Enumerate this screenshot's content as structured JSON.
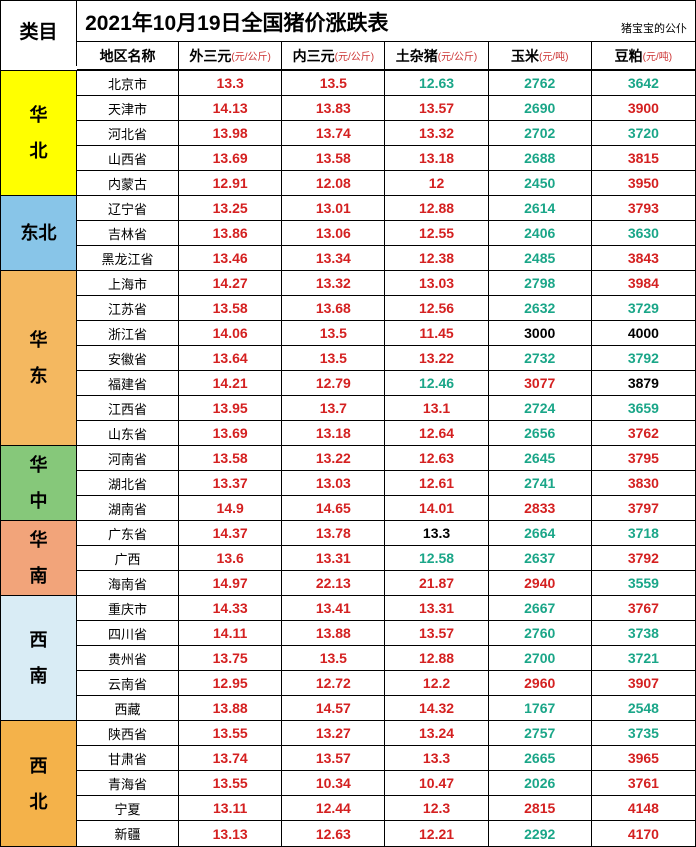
{
  "title": "2021年10月19日全国猪价涨跌表",
  "author": "猪宝宝的公仆",
  "cat_label": "类目",
  "columns": [
    {
      "label": "地区名称",
      "unit": ""
    },
    {
      "label": "外三元",
      "unit": "(元/公斤)"
    },
    {
      "label": "内三元",
      "unit": "(元/公斤)"
    },
    {
      "label": "土杂猪",
      "unit": "(元/公斤)"
    },
    {
      "label": "玉米",
      "unit": "(元/吨)"
    },
    {
      "label": "豆粕",
      "unit": "(元/吨)"
    }
  ],
  "colors": {
    "red": "#d42020",
    "teal": "#1aa688",
    "black": "#000000"
  },
  "region_colors": {
    "华北": "#ffff00",
    "东北": "#88c5e8",
    "华东": "#f4b860",
    "华中": "#86c87a",
    "华南": "#f2a47a",
    "西南": "#d9ecf5",
    "西北": "#f4b24a"
  },
  "regions": [
    {
      "name": "华北",
      "stack": [
        "华",
        "北"
      ],
      "rows": [
        {
          "area": "北京市",
          "v": [
            "13.3",
            "13.5",
            "12.63",
            "2762",
            "3642"
          ],
          "c": [
            "red",
            "red",
            "teal",
            "teal",
            "teal"
          ]
        },
        {
          "area": "天津市",
          "v": [
            "14.13",
            "13.83",
            "13.57",
            "2690",
            "3900"
          ],
          "c": [
            "red",
            "red",
            "red",
            "teal",
            "red"
          ]
        },
        {
          "area": "河北省",
          "v": [
            "13.98",
            "13.74",
            "13.32",
            "2702",
            "3720"
          ],
          "c": [
            "red",
            "red",
            "red",
            "teal",
            "teal"
          ]
        },
        {
          "area": "山西省",
          "v": [
            "13.69",
            "13.58",
            "13.18",
            "2688",
            "3815"
          ],
          "c": [
            "red",
            "red",
            "red",
            "teal",
            "red"
          ]
        },
        {
          "area": "内蒙古",
          "v": [
            "12.91",
            "12.08",
            "12",
            "2450",
            "3950"
          ],
          "c": [
            "red",
            "red",
            "red",
            "teal",
            "red"
          ]
        }
      ]
    },
    {
      "name": "东北",
      "stack": [
        "东北"
      ],
      "rows": [
        {
          "area": "辽宁省",
          "v": [
            "13.25",
            "13.01",
            "12.88",
            "2614",
            "3793"
          ],
          "c": [
            "red",
            "red",
            "red",
            "teal",
            "red"
          ]
        },
        {
          "area": "吉林省",
          "v": [
            "13.86",
            "13.06",
            "12.55",
            "2406",
            "3630"
          ],
          "c": [
            "red",
            "red",
            "red",
            "teal",
            "teal"
          ]
        },
        {
          "area": "黑龙江省",
          "v": [
            "13.46",
            "13.34",
            "12.38",
            "2485",
            "3843"
          ],
          "c": [
            "red",
            "red",
            "red",
            "teal",
            "red"
          ]
        }
      ]
    },
    {
      "name": "华东",
      "stack": [
        "华",
        "东"
      ],
      "rows": [
        {
          "area": "上海市",
          "v": [
            "14.27",
            "13.32",
            "13.03",
            "2798",
            "3984"
          ],
          "c": [
            "red",
            "red",
            "red",
            "teal",
            "red"
          ]
        },
        {
          "area": "江苏省",
          "v": [
            "13.58",
            "13.68",
            "12.56",
            "2632",
            "3729"
          ],
          "c": [
            "red",
            "red",
            "red",
            "teal",
            "teal"
          ]
        },
        {
          "area": "浙江省",
          "v": [
            "14.06",
            "13.5",
            "11.45",
            "3000",
            "4000"
          ],
          "c": [
            "red",
            "red",
            "red",
            "black",
            "black"
          ]
        },
        {
          "area": "安徽省",
          "v": [
            "13.64",
            "13.5",
            "13.22",
            "2732",
            "3792"
          ],
          "c": [
            "red",
            "red",
            "red",
            "teal",
            "teal"
          ]
        },
        {
          "area": "福建省",
          "v": [
            "14.21",
            "12.79",
            "12.46",
            "3077",
            "3879"
          ],
          "c": [
            "red",
            "red",
            "teal",
            "red",
            "black"
          ]
        },
        {
          "area": "江西省",
          "v": [
            "13.95",
            "13.7",
            "13.1",
            "2724",
            "3659"
          ],
          "c": [
            "red",
            "red",
            "red",
            "teal",
            "teal"
          ]
        },
        {
          "area": "山东省",
          "v": [
            "13.69",
            "13.18",
            "12.64",
            "2656",
            "3762"
          ],
          "c": [
            "red",
            "red",
            "red",
            "teal",
            "red"
          ]
        }
      ]
    },
    {
      "name": "华中",
      "stack": [
        "华",
        "中"
      ],
      "rows": [
        {
          "area": "河南省",
          "v": [
            "13.58",
            "13.22",
            "12.63",
            "2645",
            "3795"
          ],
          "c": [
            "red",
            "red",
            "red",
            "teal",
            "red"
          ]
        },
        {
          "area": "湖北省",
          "v": [
            "13.37",
            "13.03",
            "12.61",
            "2741",
            "3830"
          ],
          "c": [
            "red",
            "red",
            "red",
            "teal",
            "red"
          ]
        },
        {
          "area": "湖南省",
          "v": [
            "14.9",
            "14.65",
            "14.01",
            "2833",
            "3797"
          ],
          "c": [
            "red",
            "red",
            "red",
            "red",
            "red"
          ]
        }
      ]
    },
    {
      "name": "华南",
      "stack": [
        "华",
        "南"
      ],
      "rows": [
        {
          "area": "广东省",
          "v": [
            "14.37",
            "13.78",
            "13.3",
            "2664",
            "3718"
          ],
          "c": [
            "red",
            "red",
            "black",
            "teal",
            "teal"
          ]
        },
        {
          "area": "广西",
          "v": [
            "13.6",
            "13.31",
            "12.58",
            "2637",
            "3792"
          ],
          "c": [
            "red",
            "red",
            "teal",
            "teal",
            "red"
          ]
        },
        {
          "area": "海南省",
          "v": [
            "14.97",
            "22.13",
            "21.87",
            "2940",
            "3559"
          ],
          "c": [
            "red",
            "red",
            "red",
            "red",
            "teal"
          ]
        }
      ]
    },
    {
      "name": "西南",
      "stack": [
        "西",
        "南"
      ],
      "rows": [
        {
          "area": "重庆市",
          "v": [
            "14.33",
            "13.41",
            "13.31",
            "2667",
            "3767"
          ],
          "c": [
            "red",
            "red",
            "red",
            "teal",
            "red"
          ]
        },
        {
          "area": "四川省",
          "v": [
            "14.11",
            "13.88",
            "13.57",
            "2760",
            "3738"
          ],
          "c": [
            "red",
            "red",
            "red",
            "teal",
            "teal"
          ]
        },
        {
          "area": "贵州省",
          "v": [
            "13.75",
            "13.5",
            "12.88",
            "2700",
            "3721"
          ],
          "c": [
            "red",
            "red",
            "red",
            "teal",
            "teal"
          ]
        },
        {
          "area": "云南省",
          "v": [
            "12.95",
            "12.72",
            "12.2",
            "2960",
            "3907"
          ],
          "c": [
            "red",
            "red",
            "red",
            "red",
            "red"
          ]
        },
        {
          "area": "西藏",
          "v": [
            "13.88",
            "14.57",
            "14.32",
            "1767",
            "2548"
          ],
          "c": [
            "red",
            "red",
            "red",
            "teal",
            "teal"
          ]
        }
      ]
    },
    {
      "name": "西北",
      "stack": [
        "西",
        "北"
      ],
      "rows": [
        {
          "area": "陕西省",
          "v": [
            "13.55",
            "13.27",
            "13.24",
            "2757",
            "3735"
          ],
          "c": [
            "red",
            "red",
            "red",
            "teal",
            "teal"
          ]
        },
        {
          "area": "甘肃省",
          "v": [
            "13.74",
            "13.57",
            "13.3",
            "2665",
            "3965"
          ],
          "c": [
            "red",
            "red",
            "red",
            "teal",
            "red"
          ]
        },
        {
          "area": "青海省",
          "v": [
            "13.55",
            "10.34",
            "10.47",
            "2026",
            "3761"
          ],
          "c": [
            "red",
            "red",
            "red",
            "teal",
            "red"
          ]
        },
        {
          "area": "宁夏",
          "v": [
            "13.11",
            "12.44",
            "12.3",
            "2815",
            "4148"
          ],
          "c": [
            "red",
            "red",
            "red",
            "red",
            "red"
          ]
        },
        {
          "area": "新疆",
          "v": [
            "13.13",
            "12.63",
            "12.21",
            "2292",
            "4170"
          ],
          "c": [
            "red",
            "red",
            "red",
            "teal",
            "red"
          ]
        }
      ]
    }
  ]
}
